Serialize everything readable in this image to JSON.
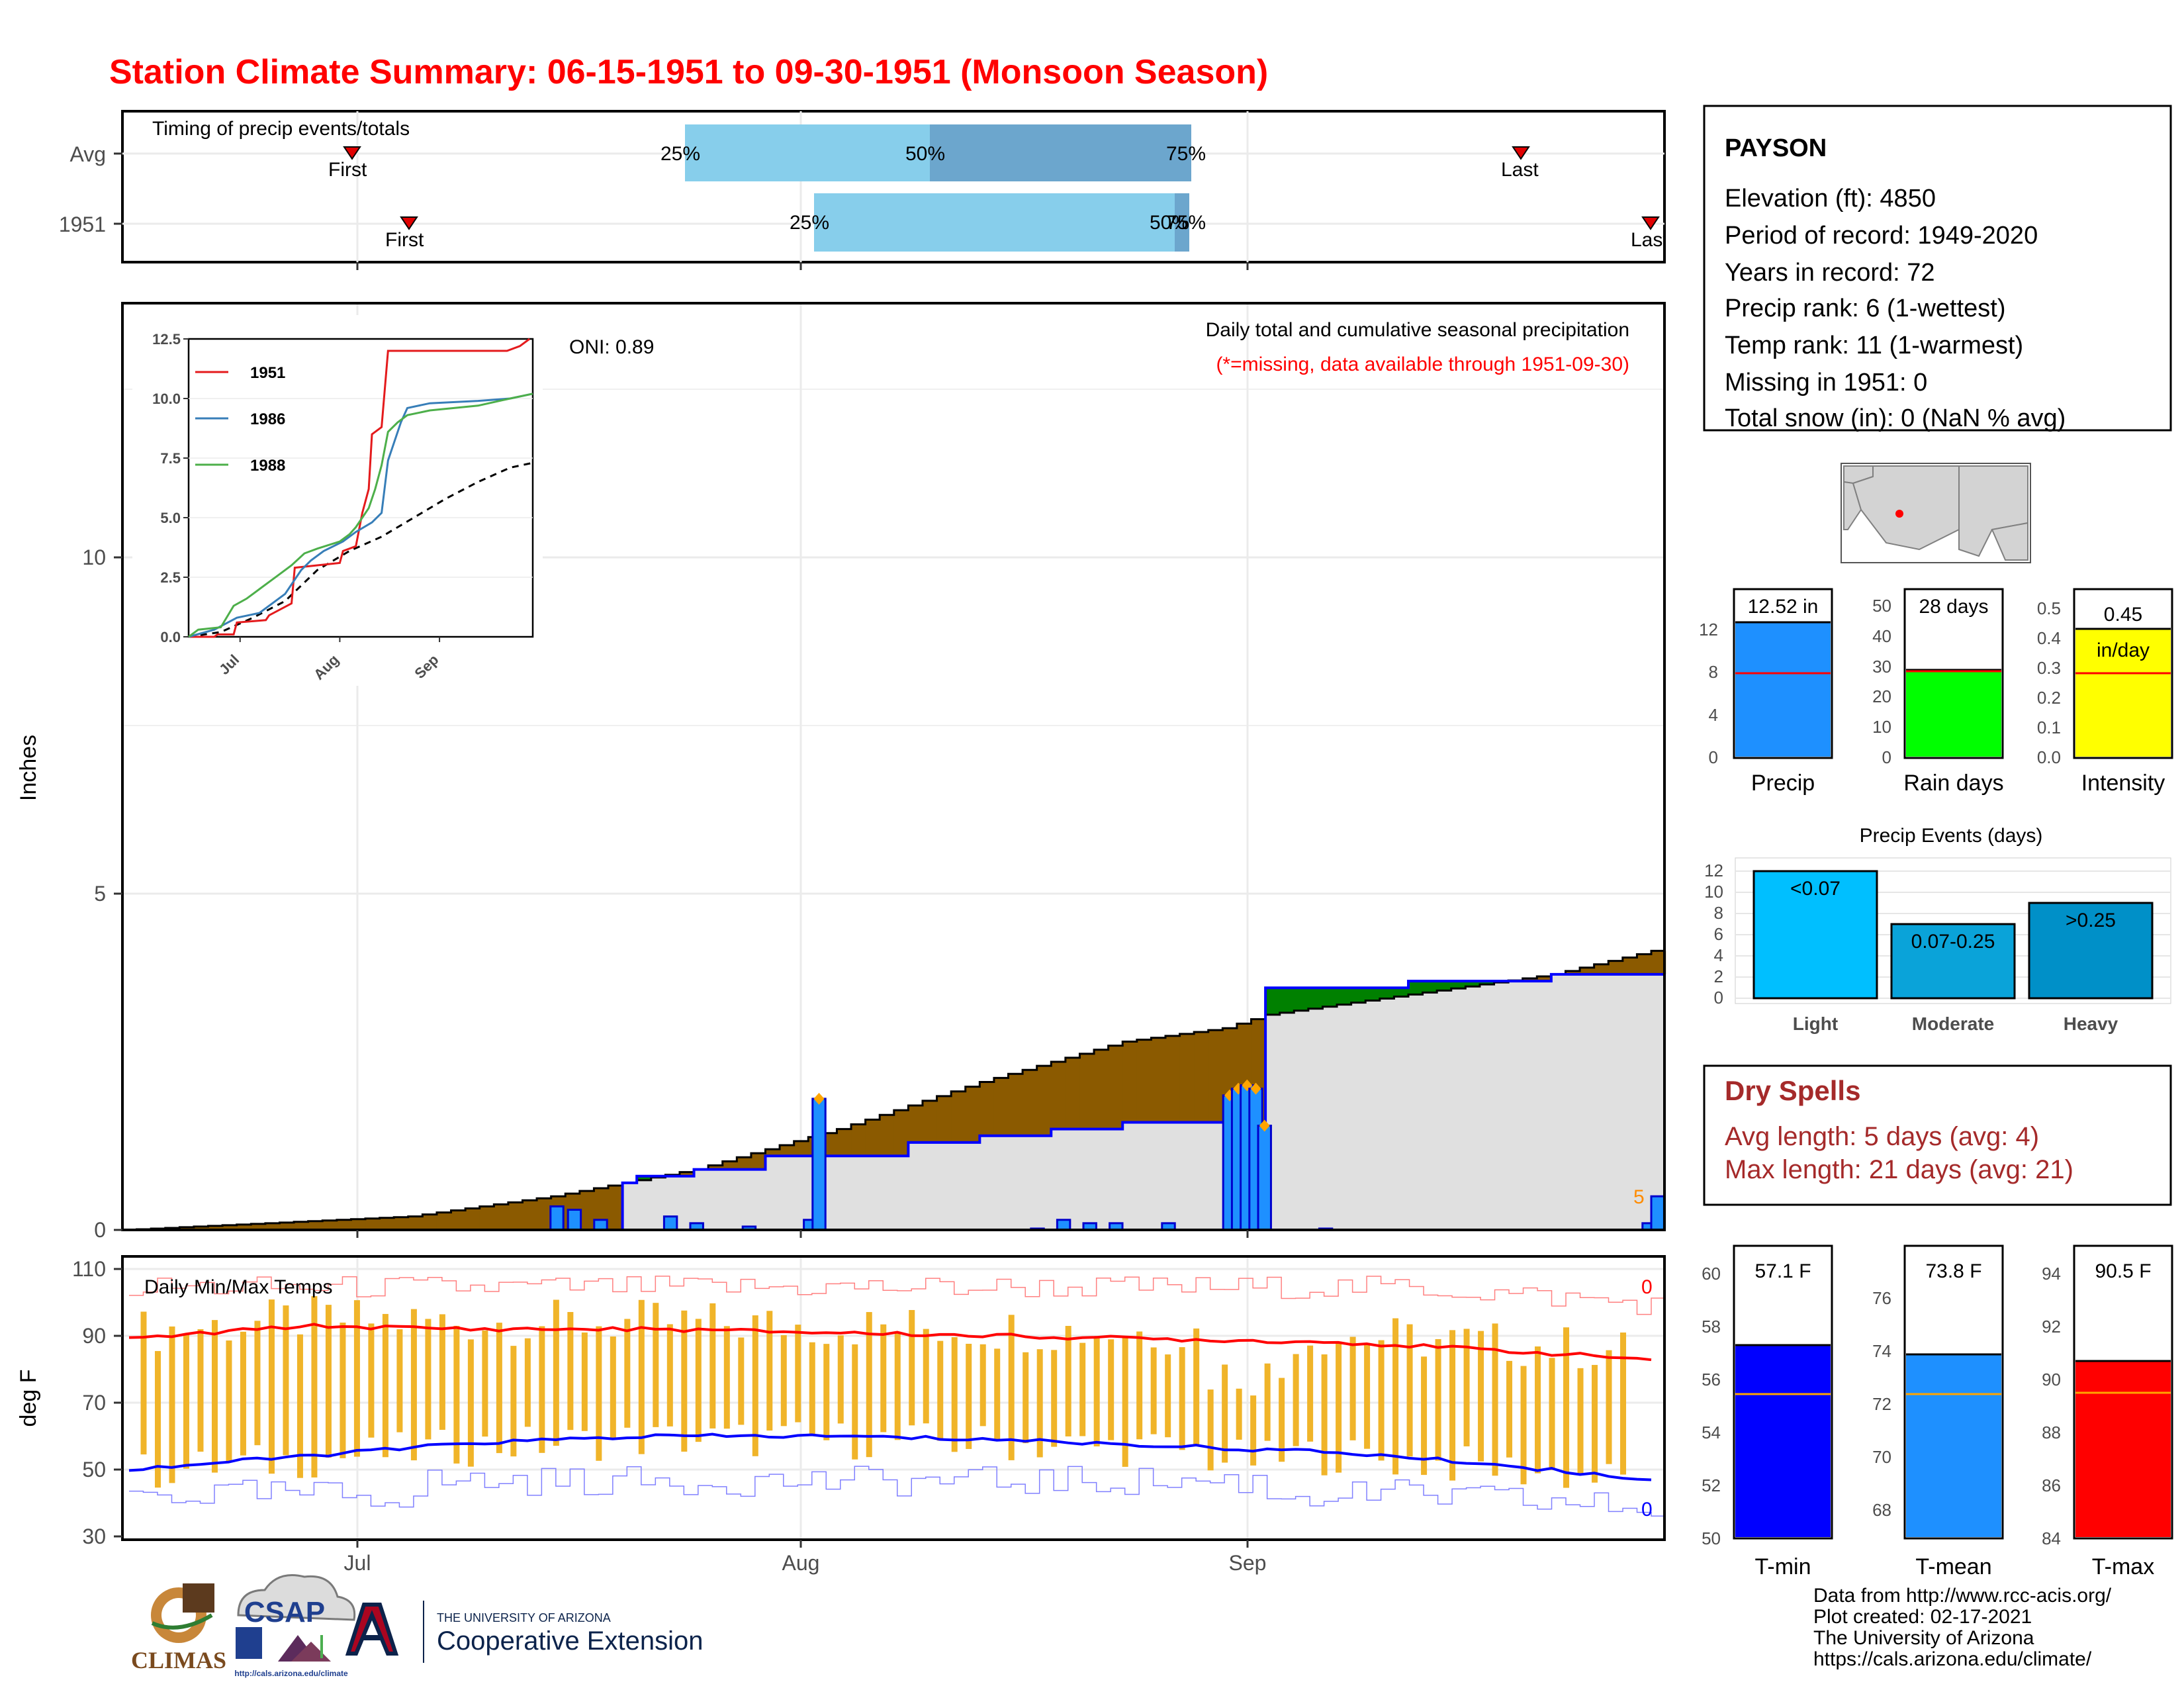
{
  "title": "Station Climate Summary: 06-15-1951 to 09-30-1951 (Monsoon Season)",
  "timing": {
    "label": "Timing of precip events/totals",
    "rows": [
      {
        "label": "Avg",
        "first": "First",
        "last": "Last",
        "p25": "25%",
        "p50": "50%",
        "p75": "75%"
      },
      {
        "label": "1951",
        "first": "First",
        "last": "Last",
        "p25": "25%",
        "p50": "50%",
        "p75": "75%"
      }
    ]
  },
  "main": {
    "ylabel": "Inches",
    "yticks": [
      "0",
      "5",
      "10"
    ],
    "oni": "ONI: 0.89",
    "caption": "Daily total and cumulative seasonal precipitation",
    "missing_note": "(*=missing, data available through 1951-09-30)",
    "end_marker": "5",
    "xticks": [
      "Jul",
      "Aug",
      "Sep"
    ]
  },
  "inset": {
    "yticks": [
      "0.0",
      "2.5",
      "5.0",
      "7.5",
      "10.0",
      "12.5"
    ],
    "xticks": [
      "Jul",
      "Aug",
      "Sep"
    ],
    "legend": [
      {
        "name": "1951",
        "color": "#e41a1c"
      },
      {
        "name": "1986",
        "color": "#377eb8"
      },
      {
        "name": "1988",
        "color": "#4daf4a"
      }
    ]
  },
  "temps": {
    "ylabel": "deg F",
    "label": "Daily Min/Max Temps",
    "yticks": [
      "30",
      "50",
      "70",
      "90",
      "110"
    ],
    "xticks": [
      "Jul",
      "Aug",
      "Sep"
    ],
    "max_count": "0",
    "min_count": "0"
  },
  "station": {
    "name": "PAYSON",
    "lines": [
      "Elevation (ft): 4850",
      "Period of record: 1949-2020",
      "Years in record: 72",
      "Precip rank: 6 (1-wettest)",
      "Temp rank: 11 (1-warmest)",
      "Missing in 1951: 0",
      "Total snow (in): 0 (NaN % avg)"
    ]
  },
  "mini_bars": {
    "precip": {
      "value_label": "12.52 in",
      "label": "Precip",
      "yticks": [
        "0",
        "4",
        "8",
        "12"
      ]
    },
    "rain_days": {
      "value_label": "28 days",
      "label": "Rain days",
      "yticks": [
        "0",
        "10",
        "20",
        "30",
        "40",
        "50"
      ]
    },
    "intensity": {
      "value_label": "0.45",
      "unit": "in/day",
      "label": "Intensity",
      "yticks": [
        "0.0",
        "0.1",
        "0.2",
        "0.3",
        "0.4",
        "0.5"
      ]
    }
  },
  "events": {
    "title": "Precip Events (days)",
    "yticks": [
      "0",
      "2",
      "4",
      "6",
      "8",
      "10",
      "12"
    ],
    "bars": [
      {
        "cat": "Light",
        "label": "<0.07",
        "value": 12,
        "color": "#00bfff"
      },
      {
        "cat": "Moderate",
        "label": "0.07-0.25",
        "value": 7,
        "color": "#0aa3d9"
      },
      {
        "cat": "Heavy",
        "label": ">0.25",
        "value": 9,
        "color": "#0090c8"
      }
    ]
  },
  "dry_spells": {
    "title": "Dry Spells",
    "avg": "Avg length: 5 days (avg: 4)",
    "max": "Max length: 21 days (avg: 21)"
  },
  "temp_bars": {
    "tmin": {
      "value_label": "57.1 F",
      "label": "T-min",
      "yticks": [
        "50",
        "52",
        "54",
        "56",
        "58",
        "60"
      ]
    },
    "tmean": {
      "value_label": "73.8 F",
      "label": "T-mean",
      "yticks": [
        "68",
        "70",
        "72",
        "74",
        "76"
      ]
    },
    "tmax": {
      "value_label": "90.5 F",
      "label": "T-max",
      "yticks": [
        "84",
        "86",
        "88",
        "90",
        "92",
        "94"
      ]
    }
  },
  "footer": {
    "lines": [
      "Data from http://www.rcc-acis.org/",
      "Plot created: 02-17-2021",
      "The University of Arizona",
      "https://cals.arizona.edu/climate/"
    ],
    "logos": {
      "climas": "CLIMAS",
      "csap": "CSAP",
      "csap_url": "http://cals.arizona.edu/climate",
      "ua_small": "THE UNIVERSITY OF ARIZONA",
      "ua_big": "Cooperative Extension"
    }
  },
  "chart_data": [
    {
      "type": "bar",
      "title": "Timing of precip events/totals",
      "rows": [
        "Avg",
        "1951"
      ],
      "series": [
        {
          "name": "Avg",
          "first": "06-30",
          "p25": "07-22",
          "p50": "08-05",
          "p75": "08-20",
          "last": "09-25"
        },
        {
          "name": "1951",
          "first": "07-02",
          "p25": "08-02",
          "p50": "08-23",
          "p75": "08-24",
          "last": "09-30"
        }
      ]
    },
    {
      "type": "area",
      "title": "Daily total and cumulative seasonal precipitation",
      "ylabel": "Inches",
      "ylim": [
        0,
        12.5
      ],
      "x_range": [
        "06-15",
        "09-30"
      ],
      "cumulative_1951": [
        [
          0,
          0
        ],
        [
          35,
          0.7
        ],
        [
          36,
          0.8
        ],
        [
          40,
          0.9
        ],
        [
          45,
          1.1
        ],
        [
          55,
          1.3
        ],
        [
          60,
          1.4
        ],
        [
          65,
          1.5
        ],
        [
          70,
          1.6
        ],
        [
          75,
          1.6
        ],
        [
          80,
          3.6
        ],
        [
          85,
          3.6
        ],
        [
          90,
          3.7
        ],
        [
          95,
          3.7
        ],
        [
          100,
          3.8
        ],
        [
          105,
          3.8
        ],
        [
          110,
          3.9
        ],
        [
          115,
          3.9
        ],
        [
          118,
          4.1
        ],
        [
          126,
          4.1
        ],
        [
          127,
          6.1
        ],
        [
          128,
          8.2
        ],
        [
          130,
          10.3
        ],
        [
          132,
          11.5
        ],
        [
          140,
          11.6
        ],
        [
          148,
          11.6
        ],
        [
          158,
          11.7
        ],
        [
          162,
          11.7
        ],
        [
          168,
          11.8
        ],
        [
          169,
          12.5
        ],
        [
          175,
          12.5
        ]
      ],
      "cumulative_avg": [
        [
          0,
          0
        ],
        [
          20,
          0.2
        ],
        [
          30,
          0.5
        ],
        [
          40,
          0.9
        ],
        [
          50,
          1.5
        ],
        [
          60,
          2.2
        ],
        [
          70,
          2.8
        ],
        [
          77,
          3.0
        ],
        [
          80,
          3.2
        ],
        [
          90,
          3.5
        ],
        [
          100,
          3.8
        ],
        [
          110,
          4.3
        ],
        [
          120,
          4.9
        ],
        [
          126,
          5.2
        ],
        [
          130,
          5.5
        ],
        [
          140,
          5.9
        ],
        [
          150,
          6.3
        ],
        [
          160,
          6.8
        ],
        [
          170,
          7.3
        ],
        [
          175,
          7.5
        ]
      ],
      "daily_bars": [
        [
          49,
          0.35
        ],
        [
          51,
          0.3
        ],
        [
          54,
          0.15
        ],
        [
          62,
          0.2
        ],
        [
          65,
          0.1
        ],
        [
          71,
          0.05
        ],
        [
          78,
          0.15
        ],
        [
          79,
          1.95
        ],
        [
          104,
          0.02
        ],
        [
          107,
          0.15
        ],
        [
          110,
          0.1
        ],
        [
          113,
          0.1
        ],
        [
          119,
          0.1
        ],
        [
          126,
          2.0
        ],
        [
          127,
          2.1
        ],
        [
          128,
          2.15
        ],
        [
          129,
          2.1
        ],
        [
          130,
          1.55
        ],
        [
          137,
          0.02
        ],
        [
          174,
          0.1
        ],
        [
          175,
          0.5
        ]
      ]
    },
    {
      "type": "line",
      "title": "Daily Min/Max Temps",
      "ylabel": "deg F",
      "ylim": [
        30,
        110
      ],
      "series": [
        {
          "name": "avg_max",
          "color": "#ff0000",
          "values": [
            [
              0,
              89
            ],
            [
              20,
              93
            ],
            [
              40,
              92
            ],
            [
              60,
              92
            ],
            [
              80,
              91
            ],
            [
              100,
              90
            ],
            [
              120,
              89
            ],
            [
              140,
              88
            ],
            [
              155,
              86
            ],
            [
              175,
              83
            ]
          ]
        },
        {
          "name": "avg_min",
          "color": "#0000ff",
          "values": [
            [
              0,
              50
            ],
            [
              20,
              54
            ],
            [
              40,
              58
            ],
            [
              60,
              60
            ],
            [
              80,
              60
            ],
            [
              100,
              59
            ],
            [
              120,
              57
            ],
            [
              140,
              55
            ],
            [
              155,
              52
            ],
            [
              175,
              47
            ]
          ]
        }
      ]
    },
    {
      "type": "bar",
      "categories": [
        "Light",
        "Moderate",
        "Heavy"
      ],
      "values": [
        12,
        7,
        9
      ],
      "title": "Precip Events (days)",
      "ylim": [
        0,
        12
      ]
    }
  ]
}
